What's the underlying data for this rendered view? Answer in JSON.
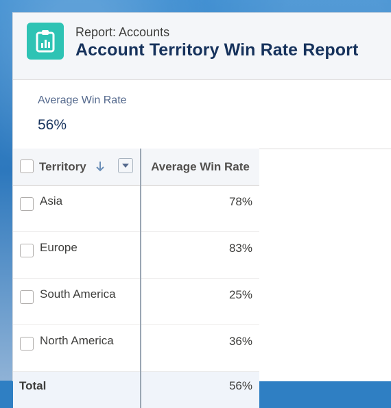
{
  "header": {
    "object_label": "Report: Accounts",
    "title": "Account Territory Win Rate Report",
    "icon": "report-icon"
  },
  "summary": {
    "label": "Average Win Rate",
    "value": "56%"
  },
  "table": {
    "columns": [
      {
        "label": "Territory",
        "sort": "descending",
        "sort_icon": "arrow-down-icon",
        "menu_icon": "chevron-down-icon"
      },
      {
        "label": "Average Win Rate"
      }
    ],
    "rows": [
      {
        "territory": "Asia",
        "rate": "78%"
      },
      {
        "territory": "Europe",
        "rate": "83%"
      },
      {
        "territory": "South America",
        "rate": "25%"
      },
      {
        "territory": "North America",
        "rate": "36%"
      }
    ],
    "total": {
      "label": "Total",
      "rate": "56%"
    }
  },
  "colors": {
    "icon_bg": "#2ec3b4",
    "title": "#16325c",
    "link_blue": "#0070d2"
  }
}
